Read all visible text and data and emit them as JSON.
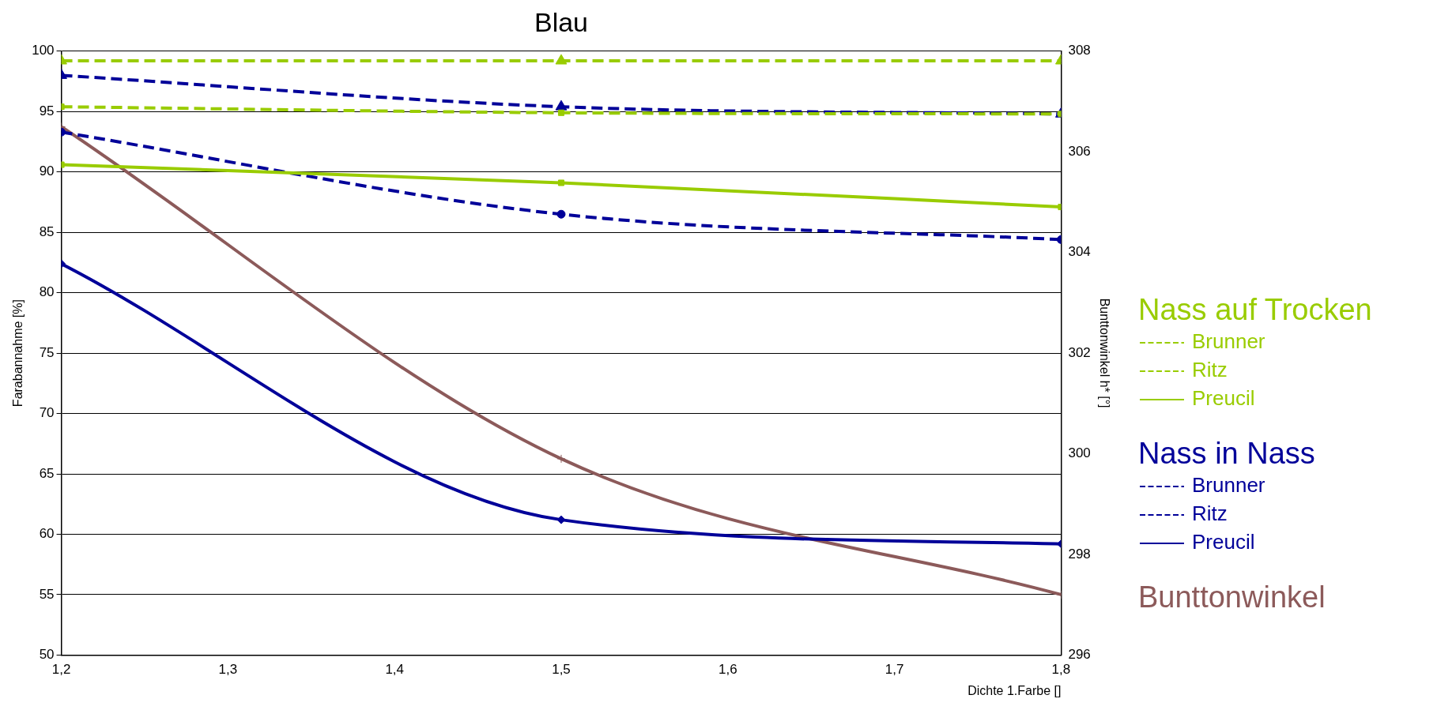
{
  "chart_data": {
    "type": "line",
    "title": "Blau",
    "xlabel": "Dichte 1.Farbe []",
    "ylabel": "Farabannahme [%]",
    "y2label": "Bunttonwinkel h* [°]",
    "annotations": [
      "Nass auf Trocken",
      "Nass in Nass"
    ],
    "x": [
      1.2,
      1.5,
      1.8
    ],
    "xlim": [
      1.2,
      1.8
    ],
    "xticks": [
      {
        "value": 1.2,
        "label": "1,2"
      },
      {
        "value": 1.3,
        "label": "1,3"
      },
      {
        "value": 1.4,
        "label": "1,4"
      },
      {
        "value": 1.5,
        "label": "1,5"
      },
      {
        "value": 1.6,
        "label": "1,6"
      },
      {
        "value": 1.7,
        "label": "1,7"
      },
      {
        "value": 1.8,
        "label": "1,8"
      }
    ],
    "ylim": [
      50,
      100
    ],
    "yticks": [
      50,
      55,
      60,
      65,
      70,
      75,
      80,
      85,
      90,
      95,
      100
    ],
    "y2lim": [
      296,
      308
    ],
    "y2ticks": [
      296,
      298,
      300,
      302,
      304,
      306,
      308
    ],
    "grid": "y",
    "legend": "right",
    "series": [
      {
        "name": "Brunner",
        "color": "#99cc00",
        "values": [
          99.2,
          99.2,
          99.2
        ],
        "line_style": "dashed",
        "marker": "triangle"
      },
      {
        "name": "Ritz",
        "color": "#99cc00",
        "values": [
          95.4,
          94.9,
          94.8
        ],
        "line_style": "dashed",
        "marker": "square"
      },
      {
        "name": "Preucil",
        "color": "#99cc00",
        "values": [
          90.6,
          89.1,
          87.1
        ],
        "line_style": "solid",
        "marker": "square"
      },
      {
        "name": "Brunner",
        "color": "#000099",
        "values": [
          98.0,
          95.4,
          94.8
        ],
        "line_style": "dashed",
        "marker": "triangle"
      },
      {
        "name": "Ritz",
        "color": "#000099",
        "values": [
          93.3,
          86.5,
          84.4
        ],
        "line_style": "dashed",
        "marker": "circle"
      },
      {
        "name": "Preucil",
        "color": "#000099",
        "values": [
          82.4,
          61.2,
          59.2
        ],
        "line_style": "solid",
        "marker": "diamond"
      },
      {
        "name": "Bunttonwinkel",
        "color": "#8c5a5a",
        "values": [
          306.5,
          299.9,
          297.2
        ],
        "line_style": "solid",
        "marker": "cross",
        "axis": "y2"
      }
    ]
  }
}
